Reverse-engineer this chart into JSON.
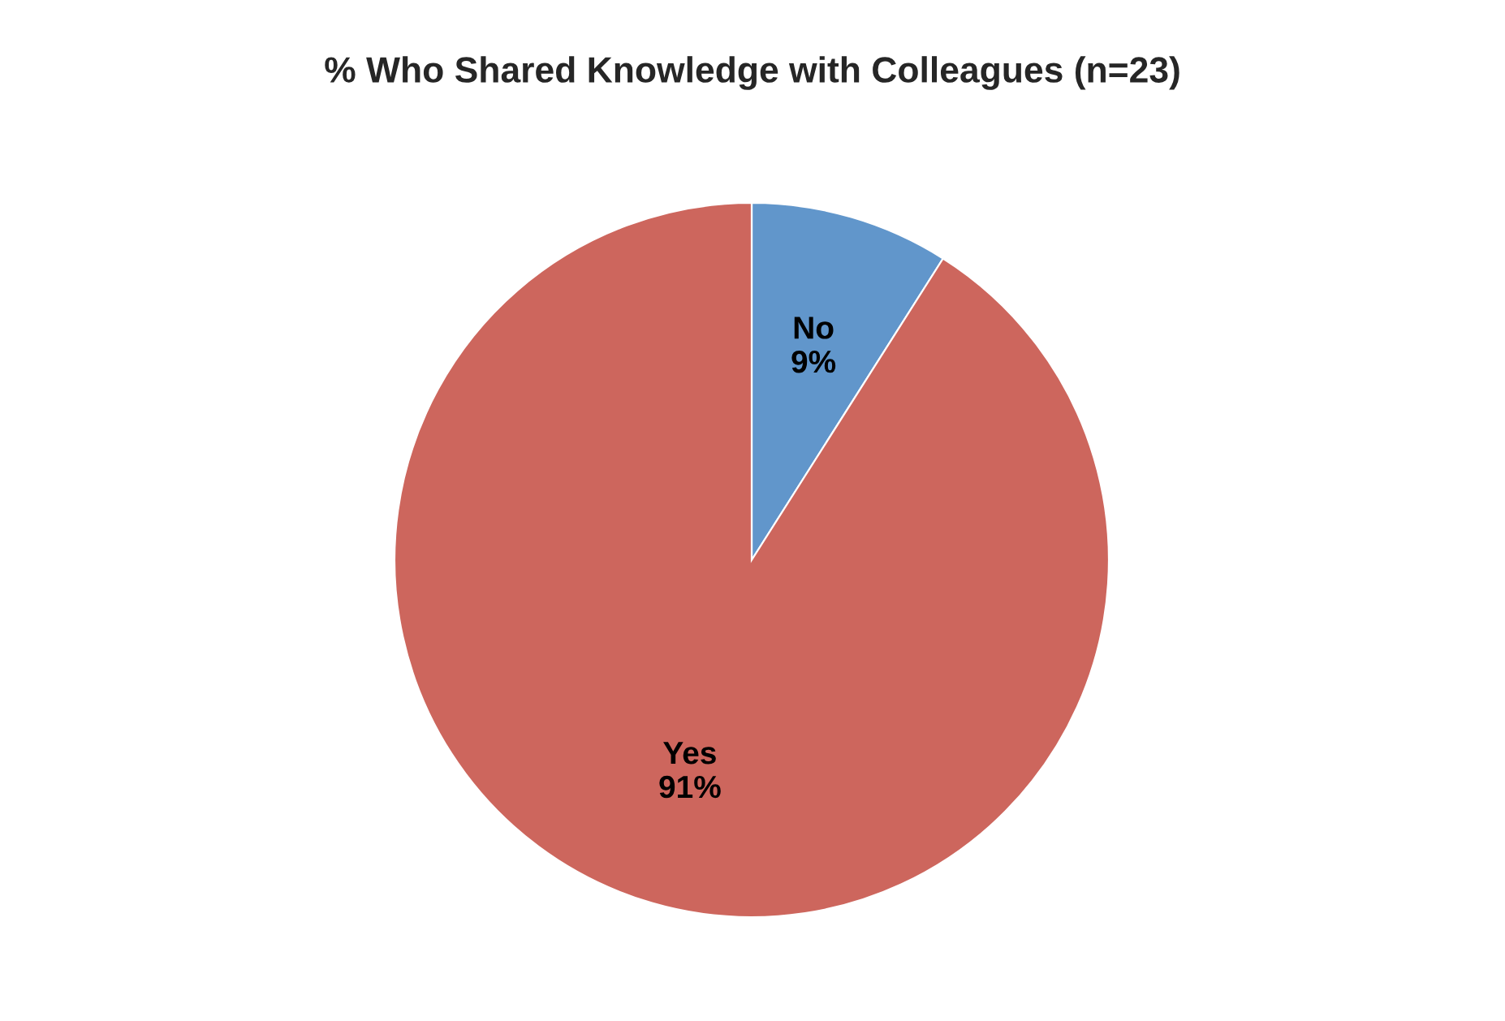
{
  "chart_data": {
    "type": "pie",
    "title": "% Who Shared Knowledge with Colleagues (n=23)",
    "categories": [
      "No",
      "Yes"
    ],
    "values": [
      9,
      91
    ],
    "colors": [
      "#6196cb",
      "#cd665d"
    ],
    "value_labels": [
      "9%",
      "91%"
    ],
    "legend": false
  }
}
